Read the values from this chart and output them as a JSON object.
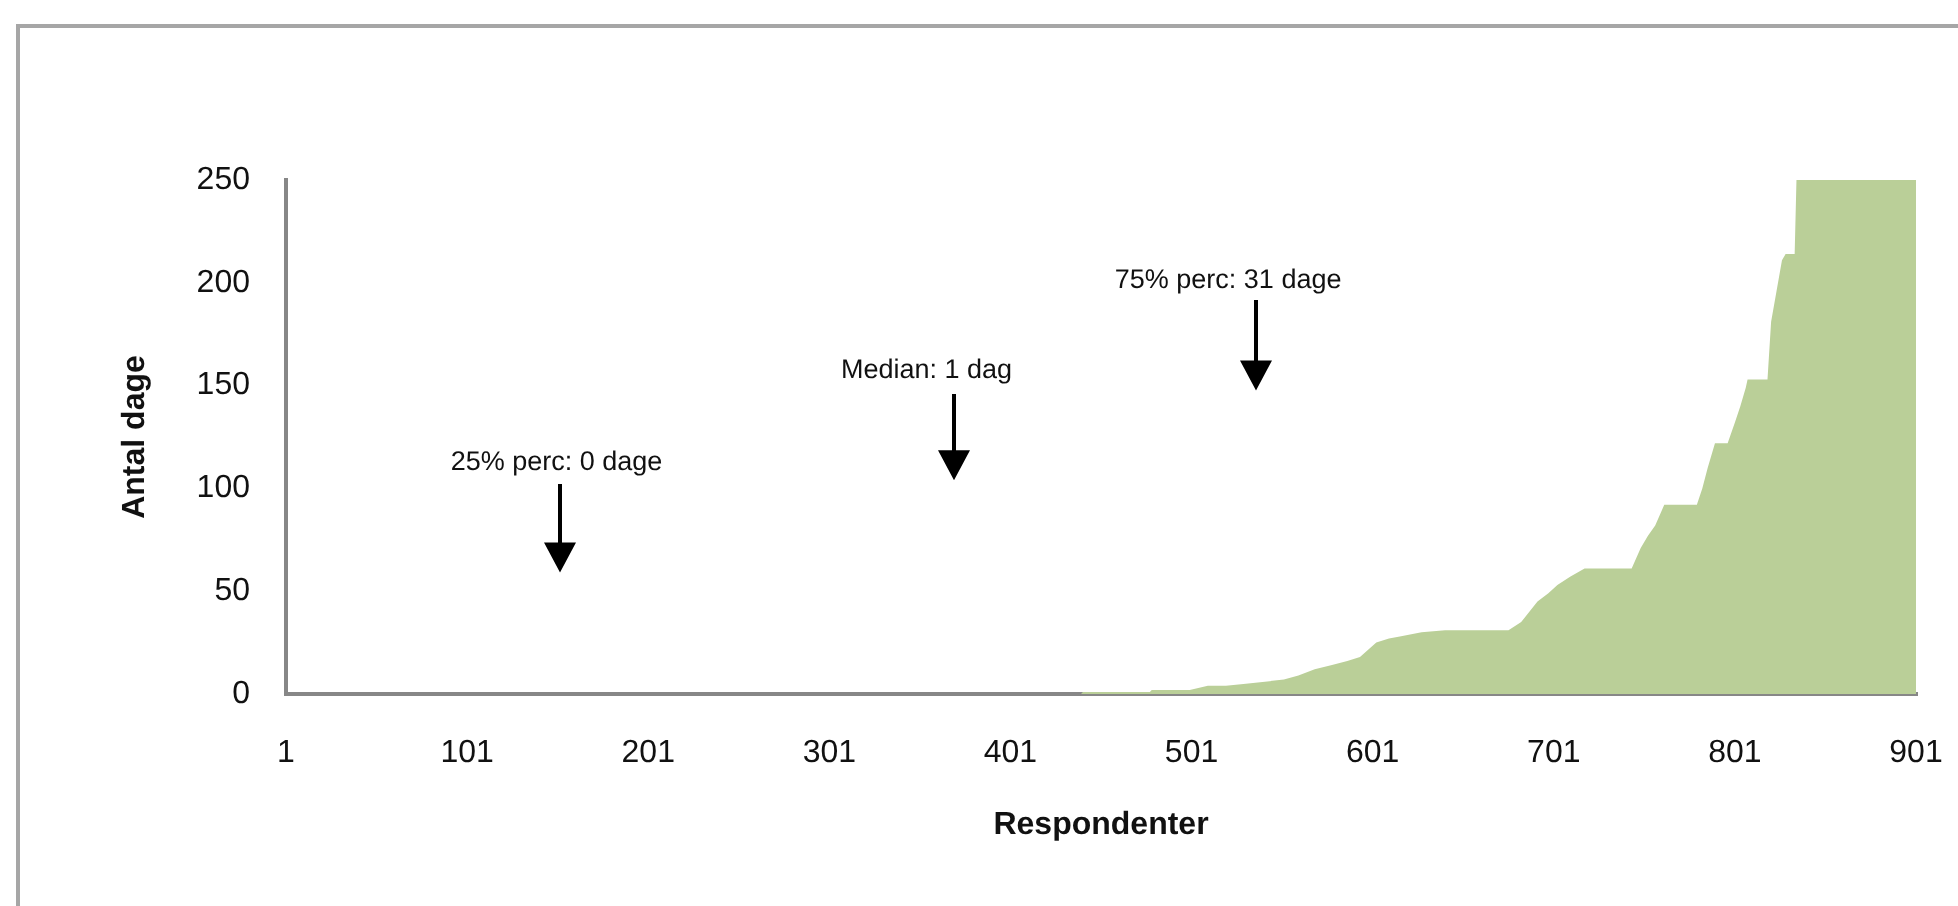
{
  "chart_data": {
    "type": "area",
    "xlabel": "Respondenter",
    "ylabel": "Antal dage",
    "x": [
      1,
      440,
      441,
      460,
      478,
      479,
      500,
      510,
      520,
      531,
      552,
      560,
      569,
      578,
      587,
      594,
      603,
      610,
      616,
      628,
      641,
      660,
      676,
      683,
      692,
      698,
      703,
      710,
      718,
      744,
      749,
      753,
      757,
      762,
      780,
      783,
      786,
      790,
      797,
      801,
      804,
      807,
      808,
      819,
      821,
      824,
      827,
      829,
      834,
      835,
      868,
      901
    ],
    "values": [
      0,
      0,
      1,
      1,
      1,
      2,
      2,
      4,
      4,
      5,
      7,
      9,
      12,
      14,
      16,
      18,
      25,
      27,
      28,
      30,
      31,
      31,
      31,
      35,
      45,
      49,
      53,
      57,
      61,
      61,
      71,
      77,
      82,
      92,
      92,
      100,
      110,
      122,
      122,
      132,
      140,
      149,
      153,
      153,
      181,
      196,
      211,
      214,
      214,
      250,
      250,
      250
    ],
    "color": "#bacf98",
    "xlim": [
      1,
      901
    ],
    "xticks": [
      1,
      101,
      201,
      301,
      401,
      501,
      601,
      701,
      801,
      901
    ],
    "ylim": [
      0,
      250
    ],
    "yticks": [
      0,
      50,
      100,
      150,
      200,
      250
    ],
    "annotations": [
      "25% perc: 0 dage",
      "Median: 1 dag",
      "75% perc: 31 dage"
    ]
  }
}
